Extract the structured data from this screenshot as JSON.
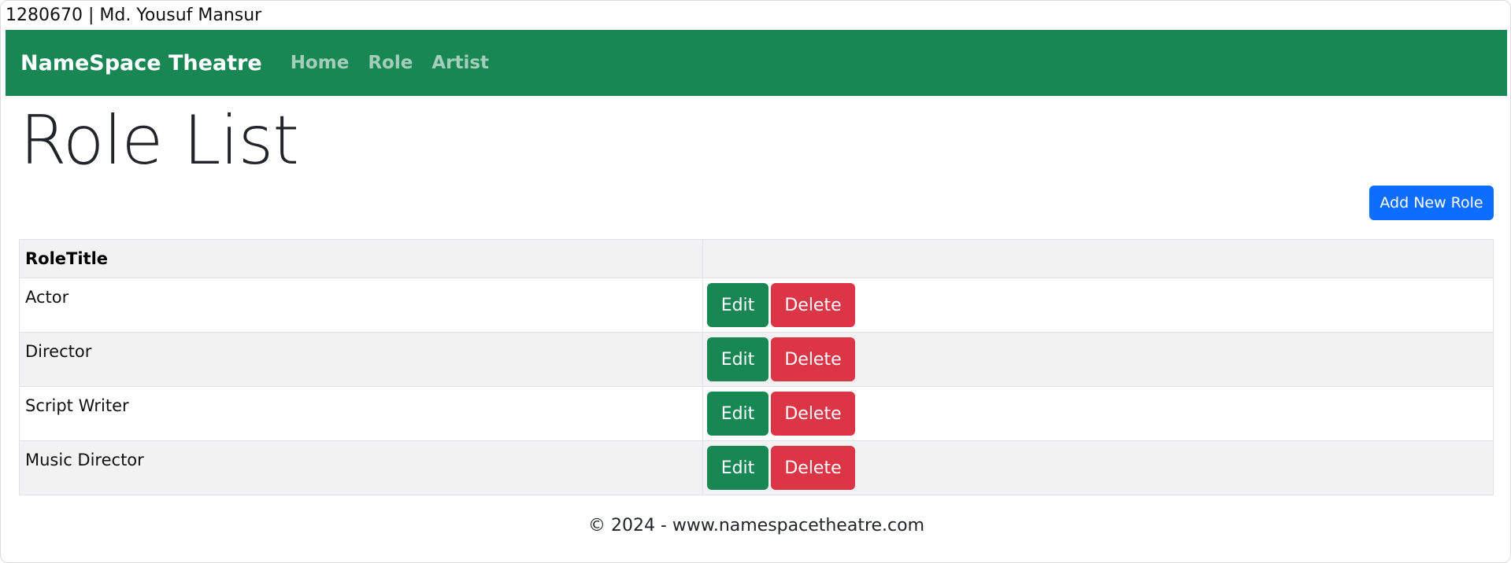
{
  "top_bar": {
    "text": "1280670 | Md. Yousuf Mansur"
  },
  "navbar": {
    "brand": "NameSpace Theatre",
    "links": [
      {
        "label": "Home"
      },
      {
        "label": "Role"
      },
      {
        "label": "Artist"
      }
    ],
    "colors": {
      "background": "#198754"
    }
  },
  "page": {
    "title": "Role List",
    "add_button_label": "Add New Role"
  },
  "table": {
    "headers": [
      "RoleTitle",
      ""
    ],
    "rows": [
      {
        "title": "Actor",
        "edit_label": "Edit",
        "delete_label": "Delete"
      },
      {
        "title": "Director",
        "edit_label": "Edit",
        "delete_label": "Delete"
      },
      {
        "title": "Script Writer",
        "edit_label": "Edit",
        "delete_label": "Delete"
      },
      {
        "title": "Music Director",
        "edit_label": "Edit",
        "delete_label": "Delete"
      }
    ]
  },
  "footer": {
    "text": "© 2024 - www.namespacetheatre.com"
  },
  "colors": {
    "primary": "#0d6efd",
    "success": "#198754",
    "danger": "#dc3545"
  }
}
